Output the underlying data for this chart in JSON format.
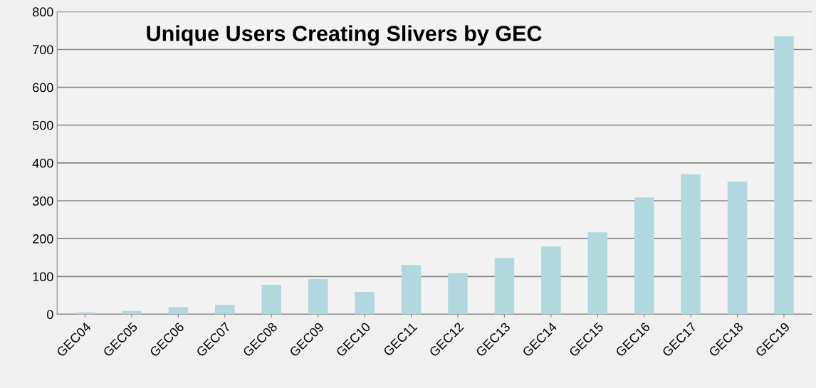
{
  "chart_data": {
    "type": "bar",
    "title": "Unique Users Creating Slivers by GEC",
    "categories": [
      "GEC04",
      "GEC05",
      "GEC06",
      "GEC07",
      "GEC08",
      "GEC09",
      "GEC10",
      "GEC11",
      "GEC12",
      "GEC13",
      "GEC14",
      "GEC15",
      "GEC16",
      "GEC17",
      "GEC18",
      "GEC19"
    ],
    "values": [
      5,
      9,
      19,
      25,
      78,
      93,
      59,
      130,
      109,
      149,
      179,
      217,
      309,
      370,
      351,
      735
    ],
    "color": "#b0d8de",
    "ylim": [
      0,
      800
    ],
    "yticks": [
      0,
      100,
      200,
      300,
      400,
      500,
      600,
      700,
      800
    ],
    "grid": "y"
  }
}
